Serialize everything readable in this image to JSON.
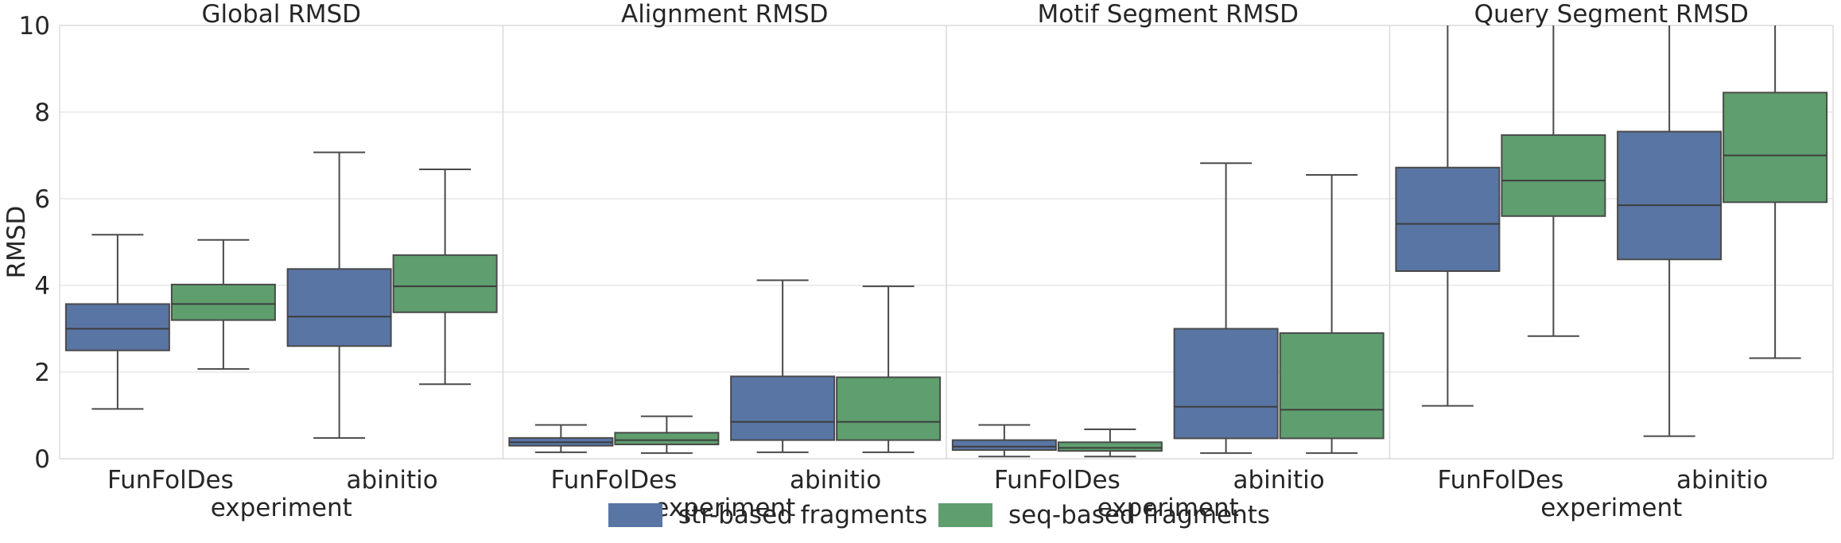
{
  "chart_data": {
    "type": "box",
    "ylabel": "RMSD",
    "ylim": [
      0,
      10
    ],
    "yticks": [
      0,
      2,
      4,
      6,
      8,
      10
    ],
    "xlabel": "experiment",
    "categories": [
      "FunFolDes",
      "abinitio"
    ],
    "series_names": [
      "str-based fragments",
      "seq-based fragments"
    ],
    "colors": {
      "str-based fragments": "#5975a4",
      "seq-based fragments": "#5f9e6e",
      "median": "#3d3d3d",
      "whisker": "#4a4a4a",
      "grid": "#e2e2e2"
    },
    "legend_position": "bottom-center",
    "panels": [
      {
        "title": "Global RMSD",
        "show_xlabel": true,
        "boxes": [
          {
            "category": "FunFolDes",
            "series": "str-based fragments",
            "whislo": 1.15,
            "q1": 2.5,
            "median": 3.0,
            "q3": 3.57,
            "whishi": 5.17
          },
          {
            "category": "FunFolDes",
            "series": "seq-based fragments",
            "whislo": 2.07,
            "q1": 3.2,
            "median": 3.57,
            "q3": 4.02,
            "whishi": 5.05
          },
          {
            "category": "abinitio",
            "series": "str-based fragments",
            "whislo": 0.48,
            "q1": 2.6,
            "median": 3.28,
            "q3": 4.38,
            "whishi": 7.07
          },
          {
            "category": "abinitio",
            "series": "seq-based fragments",
            "whislo": 1.72,
            "q1": 3.38,
            "median": 3.98,
            "q3": 4.7,
            "whishi": 6.68
          }
        ]
      },
      {
        "title": "Alignment RMSD",
        "show_xlabel": true,
        "boxes": [
          {
            "category": "FunFolDes",
            "series": "str-based fragments",
            "whislo": 0.15,
            "q1": 0.3,
            "median": 0.38,
            "q3": 0.48,
            "whishi": 0.78
          },
          {
            "category": "FunFolDes",
            "series": "seq-based fragments",
            "whislo": 0.13,
            "q1": 0.33,
            "median": 0.43,
            "q3": 0.6,
            "whishi": 0.98
          },
          {
            "category": "abinitio",
            "series": "str-based fragments",
            "whislo": 0.15,
            "q1": 0.43,
            "median": 0.85,
            "q3": 1.9,
            "whishi": 4.12
          },
          {
            "category": "abinitio",
            "series": "seq-based fragments",
            "whislo": 0.15,
            "q1": 0.43,
            "median": 0.85,
            "q3": 1.88,
            "whishi": 3.98
          }
        ]
      },
      {
        "title": "Motif Segment RMSD",
        "show_xlabel": true,
        "boxes": [
          {
            "category": "FunFolDes",
            "series": "str-based fragments",
            "whislo": 0.05,
            "q1": 0.2,
            "median": 0.28,
            "q3": 0.43,
            "whishi": 0.78
          },
          {
            "category": "FunFolDes",
            "series": "seq-based fragments",
            "whislo": 0.05,
            "q1": 0.18,
            "median": 0.25,
            "q3": 0.38,
            "whishi": 0.68
          },
          {
            "category": "abinitio",
            "series": "str-based fragments",
            "whislo": 0.13,
            "q1": 0.47,
            "median": 1.2,
            "q3": 3.0,
            "whishi": 6.82
          },
          {
            "category": "abinitio",
            "series": "seq-based fragments",
            "whislo": 0.13,
            "q1": 0.47,
            "median": 1.13,
            "q3": 2.9,
            "whishi": 6.55
          }
        ]
      },
      {
        "title": "Query Segment RMSD",
        "show_xlabel": true,
        "boxes": [
          {
            "category": "FunFolDes",
            "series": "str-based fragments",
            "whislo": 1.22,
            "q1": 4.33,
            "median": 5.42,
            "q3": 6.72,
            "whishi": 10.0
          },
          {
            "category": "FunFolDes",
            "series": "seq-based fragments",
            "whislo": 2.83,
            "q1": 5.6,
            "median": 6.42,
            "q3": 7.47,
            "whishi": 10.0
          },
          {
            "category": "abinitio",
            "series": "str-based fragments",
            "whislo": 0.52,
            "q1": 4.6,
            "median": 5.85,
            "q3": 7.55,
            "whishi": 10.0
          },
          {
            "category": "abinitio",
            "series": "seq-based fragments",
            "whislo": 2.32,
            "q1": 5.92,
            "median": 7.0,
            "q3": 8.45,
            "whishi": 10.0
          }
        ]
      }
    ]
  }
}
